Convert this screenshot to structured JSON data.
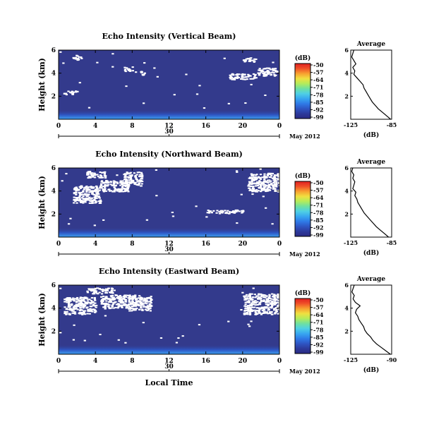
{
  "colors": {
    "background": "#333a8c",
    "white": "#ffffff",
    "colormap": [
      "#2a2a82",
      "#2d3a9c",
      "#2e56c4",
      "#2f7be8",
      "#38a8f0",
      "#4fd0e4",
      "#6fe0a0",
      "#b4ec5a",
      "#f0e040",
      "#f8a030",
      "#f05028",
      "#e02020"
    ]
  },
  "chart_data": [
    {
      "type": "heatmap",
      "title": "Echo Intensity (Vertical Beam)",
      "ylabel": "Height (km)",
      "xlim": [
        0,
        24
      ],
      "ylim": [
        0,
        6
      ],
      "x_ticks": [
        "0",
        "4",
        "8",
        "12",
        "16",
        "20",
        "0"
      ],
      "y_ticks": [
        "2",
        "4",
        "6"
      ],
      "date_day": "30",
      "date_label": "May 2012",
      "colorbar_unit": "(dB)",
      "colorbar_ticks": [
        "-50",
        "-57",
        "-64",
        "-71",
        "-78",
        "-85",
        "-92",
        "-99"
      ],
      "white_patches": [
        [
          7,
          4.2,
          1.0,
          0.4
        ],
        [
          8.8,
          3.8,
          0.6,
          0.4
        ],
        [
          18.5,
          3.5,
          3.0,
          0.5
        ],
        [
          21.5,
          3.8,
          2.2,
          0.7
        ],
        [
          1.5,
          5.2,
          1.0,
          0.4
        ],
        [
          0.5,
          2.2,
          1.5,
          0.3
        ],
        [
          20,
          5.0,
          1.5,
          0.4
        ]
      ],
      "average": {
        "title": "Average",
        "xlabel": "(dB)",
        "xlim": [
          -125,
          -85
        ],
        "x_ticks": [
          "-125",
          "-85"
        ],
        "y_ticks": [
          "2",
          "4",
          "6"
        ],
        "height": [
          0.0,
          0.3,
          0.6,
          0.9,
          1.2,
          1.5,
          1.8,
          2.1,
          2.4,
          2.7,
          3.0,
          3.3,
          3.6,
          3.9,
          4.2,
          4.5,
          4.8,
          5.1,
          5.4,
          5.7,
          6.0
        ],
        "values": [
          -86,
          -90,
          -94,
          -98,
          -101,
          -104,
          -106,
          -108,
          -110,
          -112,
          -113,
          -116,
          -119,
          -122,
          -121,
          -123,
          -120,
          -122,
          -124,
          -123,
          -122
        ]
      }
    },
    {
      "type": "heatmap",
      "title": "Echo Intensity (Northward Beam)",
      "ylabel": "Height (km)",
      "xlim": [
        0,
        24
      ],
      "ylim": [
        0,
        6
      ],
      "x_ticks": [
        "0",
        "4",
        "8",
        "12",
        "16",
        "20",
        "0"
      ],
      "y_ticks": [
        "2",
        "4",
        "6"
      ],
      "date_day": "30",
      "date_label": "May 2012",
      "colorbar_unit": "(dB)",
      "colorbar_ticks": [
        "-50",
        "-57",
        "-64",
        "-71",
        "-78",
        "-85",
        "-92",
        "-99"
      ],
      "white_patches": [
        [
          1.5,
          3.0,
          3.0,
          1.5
        ],
        [
          4.5,
          4.0,
          3.0,
          1.0
        ],
        [
          7.0,
          4.5,
          2.0,
          1.2
        ],
        [
          20.5,
          4.0,
          3.5,
          1.6
        ],
        [
          3,
          5.2,
          2,
          0.6
        ],
        [
          16,
          2.1,
          4,
          0.3
        ]
      ],
      "average": {
        "title": "Average",
        "xlabel": "(dB)",
        "xlim": [
          -125,
          -85
        ],
        "x_ticks": [
          "-125",
          "-85"
        ],
        "y_ticks": [
          "2",
          "4",
          "6"
        ],
        "height": [
          0.0,
          0.3,
          0.6,
          0.9,
          1.2,
          1.5,
          1.8,
          2.1,
          2.4,
          2.7,
          3.0,
          3.3,
          3.6,
          3.9,
          4.2,
          4.5,
          4.8,
          5.1,
          5.4,
          5.7,
          6.0
        ],
        "values": [
          -88,
          -92,
          -96,
          -100,
          -103,
          -106,
          -109,
          -112,
          -114,
          -116,
          -118,
          -119,
          -121,
          -120,
          -123,
          -122,
          -121,
          -123,
          -122,
          -124,
          -123
        ]
      }
    },
    {
      "type": "heatmap",
      "title": "Echo Intensity (Eastward Beam)",
      "ylabel": "Height (km)",
      "xlabel": "Local Time",
      "xlim": [
        0,
        24
      ],
      "ylim": [
        0,
        6
      ],
      "x_ticks": [
        "0",
        "4",
        "8",
        "12",
        "16",
        "20",
        "0"
      ],
      "y_ticks": [
        "2",
        "4",
        "6"
      ],
      "date_day": "30",
      "date_label": "May 2012",
      "colorbar_unit": "(dB)",
      "colorbar_ticks": [
        "-50",
        "-57",
        "-64",
        "-71",
        "-78",
        "-85",
        "-92",
        "-99"
      ],
      "white_patches": [
        [
          0.5,
          3.5,
          3.5,
          1.5
        ],
        [
          4.5,
          4.0,
          3.0,
          1.2
        ],
        [
          7.5,
          3.8,
          2.5,
          1.4
        ],
        [
          20.0,
          3.5,
          4.0,
          1.8
        ],
        [
          3,
          5.3,
          3,
          0.5
        ]
      ],
      "average": {
        "title": "Average",
        "xlabel": "(dB)",
        "xlim": [
          -125,
          -90
        ],
        "x_ticks": [
          "-125",
          "-90"
        ],
        "y_ticks": [
          "2",
          "4",
          "6"
        ],
        "height": [
          0.0,
          0.3,
          0.6,
          0.9,
          1.2,
          1.5,
          1.8,
          2.1,
          2.4,
          2.7,
          3.0,
          3.3,
          3.6,
          3.9,
          4.2,
          4.5,
          4.8,
          5.1,
          5.4,
          5.7,
          6.0
        ],
        "values": [
          -91,
          -95,
          -99,
          -103,
          -106,
          -108,
          -111,
          -113,
          -114,
          -116,
          -118,
          -119,
          -121,
          -120,
          -117,
          -121,
          -123,
          -122,
          -124,
          -123,
          -122
        ]
      }
    }
  ]
}
